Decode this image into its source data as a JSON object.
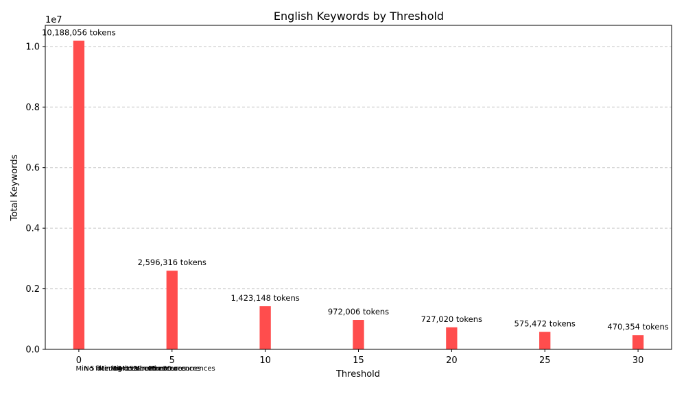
{
  "chart_data": {
    "type": "bar",
    "title": "English Keywords by Threshold",
    "xlabel": "Threshold",
    "ylabel": "Total Keywords",
    "y_scale_label": "1e7",
    "x": [
      0,
      5,
      10,
      15,
      20,
      25,
      30
    ],
    "values": [
      10188056,
      2596316,
      1423148,
      972006,
      727020,
      575472,
      470354
    ],
    "data_labels": [
      "10,188,056 tokens",
      "2,596,316 tokens",
      "1,423,148 tokens",
      "972,006 tokens",
      "727,020 tokens",
      "575,472 tokens",
      "470,354 tokens"
    ],
    "x_ticks": [
      "0",
      "5",
      "10",
      "15",
      "20",
      "25",
      "30"
    ],
    "y_ticks": [
      "0.0",
      "0.2",
      "0.4",
      "0.6",
      "0.8",
      "1.0"
    ],
    "y_tick_values": [
      0,
      2000000,
      4000000,
      6000000,
      8000000,
      10000000
    ],
    "xlim": [
      -1.8,
      31.8
    ],
    "ylim": [
      0,
      10697459
    ],
    "bar_color": "#ff4d4d",
    "grid": "y-dashed",
    "notes": [
      "No filtering",
      "Min 5 occurrences",
      "Min 10 occurrences",
      "Min 15 occurrences",
      "Min 20 occurrences",
      "Min 25 occurrences",
      "Min 30 occurrences"
    ]
  }
}
